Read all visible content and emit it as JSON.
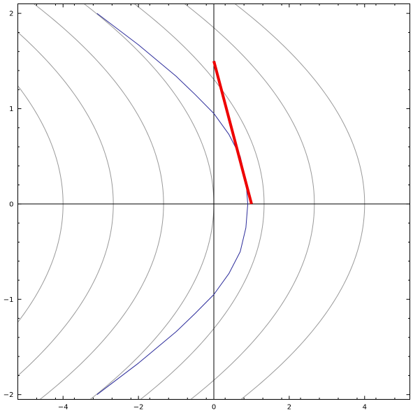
{
  "chart_data": {
    "type": "line",
    "title": "",
    "xlabel": "",
    "ylabel": "",
    "xlim": [
      -5.2,
      5.2
    ],
    "ylim": [
      -2.05,
      2.1
    ],
    "xticks": [
      -4,
      -2,
      0,
      2,
      4
    ],
    "yticks": [
      -2,
      -1,
      0,
      1,
      2
    ],
    "xtick_labels": [
      "−4",
      "−2",
      "0",
      "2",
      "4"
    ],
    "ytick_labels": [
      "−2",
      "−1",
      "0",
      "1",
      "2"
    ],
    "grid": false,
    "axes_through_origin": true,
    "contour_curves": {
      "description_form": "x = c - 0.5*y^2",
      "levels": [
        -6,
        -4,
        -2,
        0,
        2,
        4,
        6
      ],
      "color": "#999999"
    },
    "series": [
      {
        "kind": "curve",
        "form": "x = 1 - 0.5*(y + 1.2)^2 ... approximated by x = 0.9 - 1.0*y^2 truncated",
        "points": [
          {
            "x": -3.1,
            "y": 2.0
          },
          {
            "x": -2.0,
            "y": 1.67
          },
          {
            "x": -1.0,
            "y": 1.34
          },
          {
            "x": -0.5,
            "y": 1.15
          },
          {
            "x": 0.0,
            "y": 0.95
          },
          {
            "x": 0.4,
            "y": 0.73
          },
          {
            "x": 0.7,
            "y": 0.5
          },
          {
            "x": 0.85,
            "y": 0.25
          },
          {
            "x": 0.9,
            "y": 0.0
          },
          {
            "x": 0.85,
            "y": -0.25
          },
          {
            "x": 0.7,
            "y": -0.5
          },
          {
            "x": 0.4,
            "y": -0.73
          },
          {
            "x": 0.0,
            "y": -0.95
          },
          {
            "x": -0.5,
            "y": -1.15
          },
          {
            "x": -1.0,
            "y": -1.34
          },
          {
            "x": -2.0,
            "y": -1.67
          },
          {
            "x": -3.1,
            "y": -2.0
          }
        ],
        "color": "#2b2b9a"
      },
      {
        "kind": "segment",
        "points": [
          {
            "x": 0.0,
            "y": 1.5
          },
          {
            "x": 1.0,
            "y": 0.0
          }
        ],
        "color": "#ee0000"
      }
    ]
  }
}
